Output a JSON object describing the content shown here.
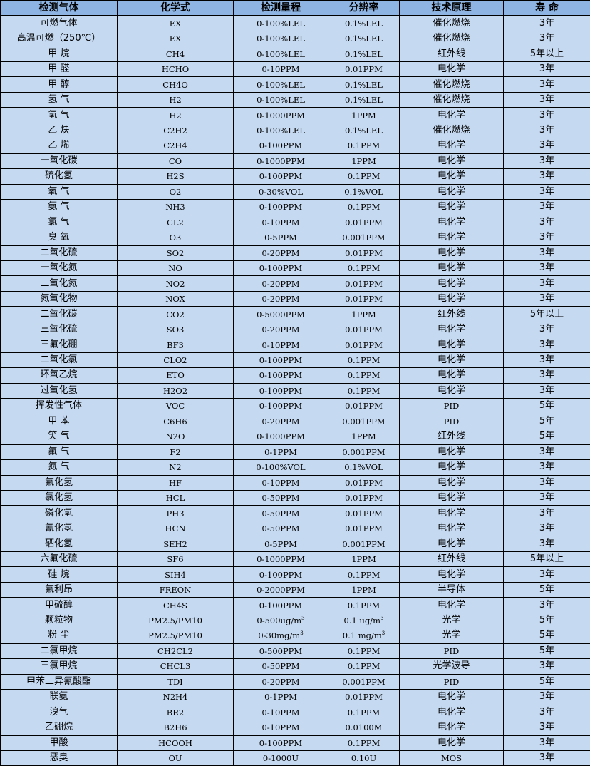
{
  "colors": {
    "header_bg": "#8db4e2",
    "row_bg": "#c5d9f1",
    "border": "#000000"
  },
  "headers": [
    "检测气体",
    "化学式",
    "检测量程",
    "分辨率",
    "技术原理",
    "寿 命"
  ],
  "rows": [
    [
      "可燃气体",
      "EX",
      "0-100%LEL",
      "0.1%LEL",
      "催化燃烧",
      "3年"
    ],
    [
      "高温可燃（250℃）",
      "EX",
      "0-100%LEL",
      "0.1%LEL",
      "催化燃烧",
      "3年"
    ],
    [
      "甲 烷",
      "CH4",
      "0-100%LEL",
      "0.1%LEL",
      "红外线",
      "5年以上"
    ],
    [
      "甲 醛",
      "HCHO",
      "0-10PPM",
      "0.01PPM",
      "电化学",
      "3年"
    ],
    [
      "甲 醇",
      "CH4O",
      "0-100%LEL",
      "0.1%LEL",
      "催化燃烧",
      "3年"
    ],
    [
      "氢 气",
      "H2",
      "0-100%LEL",
      "0.1%LEL",
      "催化燃烧",
      "3年"
    ],
    [
      "氢 气",
      "H2",
      "0-1000PPM",
      "1PPM",
      "电化学",
      "3年"
    ],
    [
      "乙 炔",
      "C2H2",
      "0-100%LEL",
      "0.1%LEL",
      "催化燃烧",
      "3年"
    ],
    [
      "乙 烯",
      "C2H4",
      "0-100PPM",
      "0.1PPM",
      "电化学",
      "3年"
    ],
    [
      "一氧化碳",
      "CO",
      "0-1000PPM",
      "1PPM",
      "电化学",
      "3年"
    ],
    [
      "硫化氢",
      "H2S",
      "0-100PPM",
      "0.1PPM",
      "电化学",
      "3年"
    ],
    [
      "氧 气",
      "O2",
      "0-30%VOL",
      "0.1%VOL",
      "电化学",
      "3年"
    ],
    [
      "氨 气",
      "NH3",
      "0-100PPM",
      "0.1PPM",
      "电化学",
      "3年"
    ],
    [
      "氯 气",
      "CL2",
      "0-10PPM",
      "0.01PPM",
      "电化学",
      "3年"
    ],
    [
      "臭 氧",
      "O3",
      "0-5PPM",
      "0.001PPM",
      "电化学",
      "3年"
    ],
    [
      "二氧化硫",
      "SO2",
      "0-20PPM",
      "0.01PPM",
      "电化学",
      "3年"
    ],
    [
      "一氧化氮",
      "NO",
      "0-100PPM",
      "0.1PPM",
      "电化学",
      "3年"
    ],
    [
      "二氧化氮",
      "NO2",
      "0-20PPM",
      "0.01PPM",
      "电化学",
      "3年"
    ],
    [
      "氮氧化物",
      "NOX",
      "0-20PPM",
      "0.01PPM",
      "电化学",
      "3年"
    ],
    [
      "二氧化碳",
      "CO2",
      "0-5000PPM",
      "1PPM",
      "红外线",
      "5年以上"
    ],
    [
      "三氧化硫",
      "SO3",
      "0-20PPM",
      "0.01PPM",
      "电化学",
      "3年"
    ],
    [
      "三氟化硼",
      "BF3",
      "0-10PPM",
      "0.01PPM",
      "电化学",
      "3年"
    ],
    [
      "二氧化氯",
      "CLO2",
      "0-100PPM",
      "0.1PPM",
      "电化学",
      "3年"
    ],
    [
      "环氧乙烷",
      "ETO",
      "0-100PPM",
      "0.1PPM",
      "电化学",
      "3年"
    ],
    [
      "过氧化氢",
      "H2O2",
      "0-100PPM",
      "0.1PPM",
      "电化学",
      "3年"
    ],
    [
      "挥发性气体",
      "VOC",
      "0-100PPM",
      "0.01PPM",
      "PID",
      "5年"
    ],
    [
      "甲 苯",
      "C6H6",
      "0-20PPM",
      "0.001PPM",
      "PID",
      "5年"
    ],
    [
      "笑 气",
      "N2O",
      "0-1000PPM",
      "1PPM",
      "红外线",
      "5年"
    ],
    [
      "氟 气",
      "F2",
      "0-1PPM",
      "0.001PPM",
      "电化学",
      "3年"
    ],
    [
      "氮 气",
      "N2",
      "0-100%VOL",
      "0.1%VOL",
      "电化学",
      "3年"
    ],
    [
      "氟化氢",
      "HF",
      "0-10PPM",
      "0.01PPM",
      "电化学",
      "3年"
    ],
    [
      "氯化氢",
      "HCL",
      "0-50PPM",
      "0.01PPM",
      "电化学",
      "3年"
    ],
    [
      "磷化氢",
      "PH3",
      "0-50PPM",
      "0.01PPM",
      "电化学",
      "3年"
    ],
    [
      "氰化氢",
      "HCN",
      "0-50PPM",
      "0.01PPM",
      "电化学",
      "3年"
    ],
    [
      "硒化氢",
      "SEH2",
      "0-5PPM",
      "0.001PPM",
      "电化学",
      "3年"
    ],
    [
      "六氟化硫",
      "SF6",
      "0-1000PPM",
      "1PPM",
      "红外线",
      "5年以上"
    ],
    [
      "硅 烷",
      "SIH4",
      "0-100PPM",
      "0.1PPM",
      "电化学",
      "3年"
    ],
    [
      "氟利昂",
      "FREON",
      "0-2000PPM",
      "1PPM",
      "半导体",
      "5年"
    ],
    [
      "甲硫醇",
      "CH4S",
      "0-100PPM",
      "0.1PPM",
      "电化学",
      "3年"
    ],
    [
      "颗粒物",
      "PM2.5/PM10",
      "0-500ug/m³",
      "0.1 ug/m³",
      "光学",
      "5年"
    ],
    [
      "粉 尘",
      "PM2.5/PM10",
      "0-30mg/m³",
      "0.1 mg/m³",
      "光学",
      "5年"
    ],
    [
      "二氯甲烷",
      "CH2CL2",
      "0-500PPM",
      "0.1PPM",
      "PID",
      "5年"
    ],
    [
      "三氯甲烷",
      "CHCL3",
      "0-50PPM",
      "0.1PPM",
      "光学波导",
      "3年"
    ],
    [
      "甲苯二异氰酸酯",
      "TDI",
      "0-20PPM",
      "0.001PPM",
      "PID",
      "5年"
    ],
    [
      "联氨",
      "N2H4",
      "0-1PPM",
      "0.01PPM",
      "电化学",
      "3年"
    ],
    [
      "溴气",
      "BR2",
      "0-10PPM",
      "0.1PPM",
      "电化学",
      "3年"
    ],
    [
      "乙硼烷",
      "B2H6",
      "0-10PPM",
      "0.0100M",
      "电化学",
      "3年"
    ],
    [
      "甲酸",
      "HCOOH",
      "0-100PPM",
      "0.1PPM",
      "电化学",
      "3年"
    ],
    [
      "恶臭",
      "OU",
      "0-1000U",
      "0.10U",
      "MOS",
      "3年"
    ]
  ]
}
